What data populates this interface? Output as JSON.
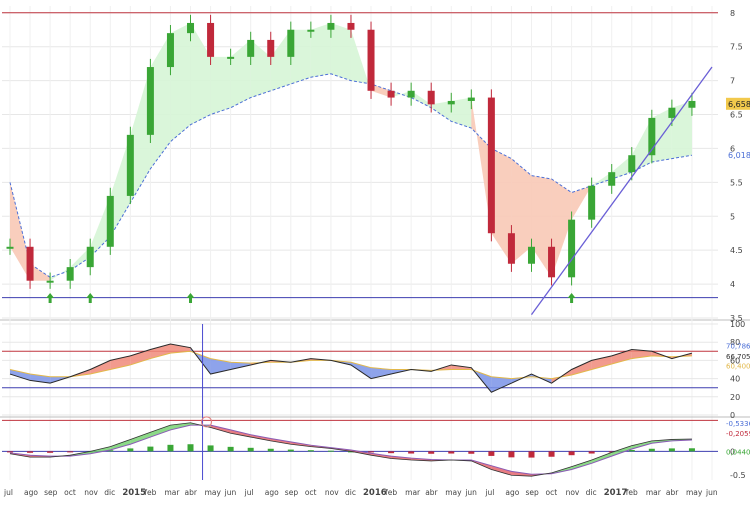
{
  "colors": {
    "up": "#3aa636",
    "down": "#c0293b",
    "ema": "#4c6fd6",
    "channel_line": "#c0353f",
    "support_line": "#3e3fb0",
    "trend_line": "#6a5fd6",
    "fill_green": "#d6f5d6",
    "fill_red": "#f8c9b6",
    "rsi_line": "#2a2a2a",
    "rsi_signal": "#e2b84a",
    "cursor_line": "#4b4bd0",
    "osc_line": "#8a5bb5",
    "hist_up": "#3aa636",
    "hist_down": "#c0293b",
    "grid": "#e7e7e7",
    "axis_text": "#444444",
    "current_price_bg": "#f2c94c"
  },
  "chart_data": [
    {
      "type": "line",
      "chart_kind": "candlestick",
      "title": "",
      "xlabel": "",
      "ylabel": "",
      "ylim": [
        3.5,
        8.1
      ],
      "y_ticks": [
        "8",
        "7.5",
        "7",
        "6.5",
        "6",
        "5.5",
        "5",
        "4.5",
        "4",
        "3.5"
      ],
      "x": [
        "2014-07",
        "2014-08",
        "2014-09",
        "2014-10",
        "2014-11",
        "2014-12",
        "2015-01",
        "2015-02",
        "2015-03",
        "2015-04",
        "2015-05",
        "2015-06",
        "2015-07",
        "2015-08",
        "2015-09",
        "2015-10",
        "2015-11",
        "2015-12",
        "2016-01",
        "2016-02",
        "2016-03",
        "2016-04",
        "2016-05",
        "2016-06",
        "2016-07",
        "2016-08",
        "2016-09",
        "2016-10",
        "2016-11",
        "2016-12",
        "2017-01",
        "2017-02",
        "2017-03",
        "2017-04",
        "2017-05",
        "2017-06"
      ],
      "x_ticks": [
        "jul",
        "ago",
        "sep",
        "oct",
        "nov",
        "dic",
        "2015",
        "feb",
        "mar",
        "abr",
        "may",
        "jun",
        "jul",
        "ago",
        "sep",
        "oct",
        "nov",
        "dic",
        "2016",
        "feb",
        "mar",
        "abr",
        "may",
        "jun",
        "jul",
        "ago",
        "sep",
        "oct",
        "nov",
        "dic",
        "2017",
        "feb",
        "mar",
        "abr",
        "may",
        "jun"
      ],
      "series": [
        {
          "values": [
            4.55,
            4.05,
            4.05,
            4.25,
            4.55,
            5.3,
            6.2,
            7.2,
            7.7,
            7.85,
            7.35,
            7.35,
            7.6,
            7.35,
            7.75,
            7.75,
            7.85,
            7.75,
            6.85,
            6.75,
            6.85,
            6.65,
            6.7,
            6.75,
            4.75,
            4.3,
            4.55,
            4.1,
            4.95,
            5.45,
            5.65,
            5.9,
            6.45,
            6.6,
            6.7,
            null
          ]
        },
        {
          "values": [
            5.5,
            4.3,
            4.1,
            4.2,
            4.4,
            4.7,
            5.2,
            5.7,
            6.1,
            6.35,
            6.5,
            6.6,
            6.75,
            6.85,
            6.95,
            7.05,
            7.1,
            7.0,
            6.95,
            6.85,
            6.75,
            6.6,
            6.4,
            6.3,
            6.0,
            5.85,
            5.6,
            5.55,
            5.35,
            5.45,
            5.55,
            5.65,
            5.8,
            5.85,
            5.9,
            null
          ]
        }
      ],
      "current_price": "6,658",
      "right_labels": [
        "6,658",
        "6,0180"
      ],
      "horizontal_levels": [
        8.0,
        3.8
      ],
      "trend_line": {
        "from": [
          "2016-09",
          3.55
        ],
        "to": [
          "2017-06",
          7.2
        ]
      },
      "arrows_up": [
        "2014-09",
        "2014-11",
        "2015-04",
        "2016-11"
      ],
      "grid": true
    },
    {
      "type": "line",
      "chart_kind": "rsi",
      "title": "",
      "ylim": [
        0,
        100
      ],
      "y_ticks": [
        "100",
        "80",
        "60",
        "40",
        "20",
        "0"
      ],
      "levels": [
        70,
        30
      ],
      "right_labels": [
        "70,7860",
        "66,7050",
        "60,4000"
      ],
      "series": [
        {
          "values": [
            45,
            38,
            35,
            42,
            50,
            60,
            65,
            72,
            78,
            74,
            45,
            50,
            55,
            60,
            58,
            62,
            60,
            55,
            40,
            45,
            50,
            48,
            55,
            52,
            25,
            35,
            45,
            35,
            50,
            60,
            65,
            72,
            70,
            62,
            68,
            null
          ]
        },
        {
          "values": [
            50,
            45,
            42,
            42,
            45,
            50,
            55,
            62,
            68,
            70,
            62,
            58,
            57,
            58,
            58,
            60,
            60,
            58,
            52,
            50,
            50,
            49,
            50,
            50,
            42,
            40,
            42,
            40,
            44,
            50,
            56,
            62,
            65,
            64,
            65,
            null
          ]
        }
      ]
    },
    {
      "type": "line",
      "chart_kind": "oscillator",
      "title": "",
      "ylim": [
        -0.6,
        0.7
      ],
      "y_ticks": [
        "0",
        "-0.5"
      ],
      "right_labels": [
        "-0,5336",
        "-0,2059",
        "0,0440"
      ],
      "series": [
        {
          "values": [
            -0.05,
            -0.12,
            -0.12,
            -0.08,
            0.0,
            0.1,
            0.25,
            0.4,
            0.55,
            0.6,
            0.5,
            0.38,
            0.3,
            0.22,
            0.15,
            0.1,
            0.06,
            0.0,
            -0.08,
            -0.15,
            -0.18,
            -0.2,
            -0.18,
            -0.2,
            -0.38,
            -0.5,
            -0.52,
            -0.45,
            -0.32,
            -0.18,
            -0.02,
            0.12,
            0.22,
            0.25,
            0.26,
            null
          ]
        },
        {
          "values": [
            -0.03,
            -0.08,
            -0.1,
            -0.1,
            -0.05,
            0.03,
            0.15,
            0.3,
            0.45,
            0.55,
            0.55,
            0.45,
            0.35,
            0.27,
            0.2,
            0.13,
            0.08,
            0.03,
            -0.04,
            -0.1,
            -0.14,
            -0.17,
            -0.18,
            -0.18,
            -0.3,
            -0.42,
            -0.48,
            -0.47,
            -0.38,
            -0.25,
            -0.1,
            0.05,
            0.17,
            0.22,
            0.24,
            null
          ]
        }
      ]
    }
  ]
}
